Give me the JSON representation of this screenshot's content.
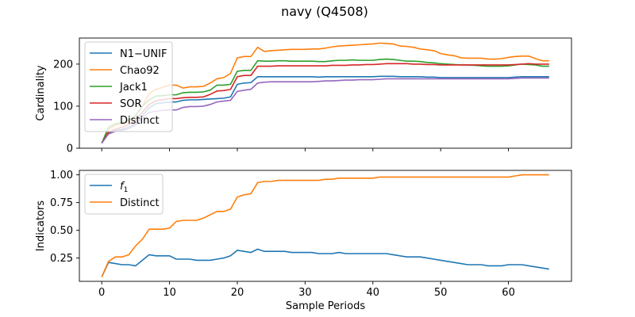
{
  "figure_title": "navy (Q4508)",
  "chart_data": [
    {
      "type": "line",
      "xlabel": "",
      "ylabel": "Cardinality",
      "xlim": [
        -3.3,
        69.3
      ],
      "ylim": [
        0,
        262
      ],
      "xticks": [
        0,
        10,
        20,
        30,
        40,
        50,
        60
      ],
      "xticklabels_visible": false,
      "yticks": [
        0,
        100,
        200
      ],
      "yticklabels": [
        "0",
        "100",
        "200"
      ],
      "legend": "upper-left",
      "grid": false,
      "x": [
        0,
        1,
        2,
        3,
        4,
        5,
        6,
        7,
        8,
        9,
        10,
        11,
        12,
        13,
        14,
        15,
        16,
        17,
        18,
        19,
        20,
        21,
        22,
        23,
        24,
        25,
        26,
        27,
        28,
        29,
        30,
        31,
        32,
        33,
        34,
        35,
        36,
        37,
        38,
        39,
        40,
        41,
        42,
        43,
        44,
        45,
        46,
        47,
        48,
        49,
        50,
        51,
        52,
        53,
        54,
        55,
        56,
        57,
        58,
        59,
        60,
        61,
        62,
        63,
        64,
        65,
        66
      ],
      "series": [
        {
          "name": "N1−UNIF",
          "color": "#1f77b4",
          "values": [
            12,
            37,
            42,
            45,
            50,
            58,
            78,
            96,
            106,
            108,
            110,
            110,
            114,
            115,
            115,
            116,
            117,
            118,
            119,
            122,
            152,
            155,
            156,
            170,
            170,
            170,
            170,
            170,
            170,
            170,
            170,
            170,
            169,
            170,
            170,
            170,
            170,
            170,
            170,
            170,
            170,
            171,
            171,
            171,
            170,
            170,
            170,
            170,
            169,
            169,
            168,
            168,
            168,
            168,
            168,
            168,
            168,
            168,
            168,
            168,
            168,
            169,
            170,
            170,
            170,
            170,
            170
          ]
        },
        {
          "name": "Chao92",
          "color": "#ff7f0e",
          "values": [
            12,
            45,
            55,
            58,
            65,
            78,
            100,
            130,
            140,
            145,
            150,
            150,
            143,
            146,
            146,
            147,
            155,
            165,
            168,
            178,
            215,
            218,
            218,
            240,
            230,
            232,
            233,
            234,
            235,
            235,
            235,
            236,
            236,
            238,
            241,
            243,
            244,
            245,
            246,
            247,
            248,
            250,
            249,
            248,
            243,
            242,
            240,
            236,
            234,
            232,
            225,
            222,
            220,
            215,
            214,
            214,
            214,
            212,
            212,
            213,
            216,
            218,
            219,
            219,
            213,
            208,
            208
          ]
        },
        {
          "name": "Jack1",
          "color": "#2ca02c",
          "values": [
            12,
            50,
            58,
            62,
            67,
            78,
            100,
            115,
            124,
            125,
            127,
            127,
            132,
            133,
            133,
            134,
            138,
            150,
            150,
            152,
            183,
            185,
            185,
            208,
            207,
            207,
            208,
            208,
            207,
            207,
            207,
            207,
            206,
            206,
            208,
            209,
            209,
            210,
            209,
            209,
            209,
            211,
            212,
            211,
            209,
            207,
            207,
            206,
            204,
            203,
            201,
            200,
            199,
            198,
            198,
            197,
            196,
            195,
            195,
            195,
            196,
            198,
            200,
            199,
            198,
            195,
            195
          ]
        },
        {
          "name": "SOR",
          "color": "#d62728",
          "values": [
            12,
            38,
            45,
            50,
            56,
            68,
            86,
            104,
            113,
            115,
            118,
            118,
            120,
            121,
            121,
            122,
            128,
            136,
            137,
            140,
            170,
            173,
            173,
            195,
            195,
            195,
            196,
            196,
            196,
            196,
            196,
            196,
            196,
            196,
            197,
            197,
            197,
            198,
            198,
            199,
            199,
            200,
            201,
            201,
            201,
            201,
            200,
            200,
            199,
            199,
            198,
            198,
            198,
            198,
            198,
            198,
            198,
            198,
            198,
            198,
            198,
            199,
            200,
            201,
            200,
            200,
            200
          ]
        },
        {
          "name": "Distinct",
          "color": "#9467bd",
          "values": [
            12,
            34,
            40,
            42,
            47,
            55,
            73,
            85,
            88,
            90,
            91,
            91,
            97,
            99,
            99,
            100,
            104,
            110,
            112,
            114,
            135,
            138,
            140,
            155,
            157,
            158,
            158,
            158,
            158,
            158,
            158,
            158,
            159,
            160,
            160,
            161,
            162,
            162,
            163,
            163,
            163,
            164,
            165,
            165,
            165,
            165,
            165,
            165,
            165,
            165,
            165,
            165,
            165,
            165,
            165,
            165,
            165,
            165,
            165,
            165,
            165,
            166,
            167,
            167,
            167,
            167,
            167
          ]
        }
      ]
    },
    {
      "type": "line",
      "xlabel": "Sample Periods",
      "ylabel": "Indicators",
      "xlim": [
        -3.3,
        69.3
      ],
      "ylim": [
        0.04,
        1.04
      ],
      "xticks": [
        0,
        10,
        20,
        30,
        40,
        50,
        60
      ],
      "xticklabels": [
        "0",
        "10",
        "20",
        "30",
        "40",
        "50",
        "60"
      ],
      "yticks": [
        0.25,
        0.5,
        0.75,
        1.0
      ],
      "yticklabels": [
        "0.25",
        "0.50",
        "0.75",
        "1.00"
      ],
      "legend": "upper-left",
      "grid": false,
      "x": [
        0,
        1,
        2,
        3,
        4,
        5,
        6,
        7,
        8,
        9,
        10,
        11,
        12,
        13,
        14,
        15,
        16,
        17,
        18,
        19,
        20,
        21,
        22,
        23,
        24,
        25,
        26,
        27,
        28,
        29,
        30,
        31,
        32,
        33,
        34,
        35,
        36,
        37,
        38,
        39,
        40,
        41,
        42,
        43,
        44,
        45,
        46,
        47,
        48,
        49,
        50,
        51,
        52,
        53,
        54,
        55,
        56,
        57,
        58,
        59,
        60,
        61,
        62,
        63,
        64,
        65,
        66
      ],
      "series": [
        {
          "name": "f1",
          "name_base": "f",
          "name_sub": "1",
          "color": "#1f77b4",
          "values": [
            0.08,
            0.21,
            0.2,
            0.19,
            0.19,
            0.18,
            0.23,
            0.28,
            0.27,
            0.27,
            0.27,
            0.24,
            0.24,
            0.24,
            0.23,
            0.23,
            0.23,
            0.24,
            0.25,
            0.27,
            0.32,
            0.31,
            0.3,
            0.33,
            0.31,
            0.31,
            0.31,
            0.31,
            0.3,
            0.3,
            0.3,
            0.3,
            0.29,
            0.29,
            0.29,
            0.3,
            0.29,
            0.29,
            0.29,
            0.29,
            0.29,
            0.29,
            0.29,
            0.28,
            0.27,
            0.26,
            0.26,
            0.26,
            0.25,
            0.24,
            0.23,
            0.22,
            0.21,
            0.2,
            0.19,
            0.19,
            0.19,
            0.18,
            0.18,
            0.18,
            0.19,
            0.19,
            0.19,
            0.18,
            0.17,
            0.16,
            0.15
          ]
        },
        {
          "name": "Distinct",
          "color": "#ff7f0e",
          "values": [
            0.08,
            0.22,
            0.26,
            0.26,
            0.28,
            0.36,
            0.42,
            0.51,
            0.51,
            0.51,
            0.52,
            0.58,
            0.59,
            0.59,
            0.59,
            0.61,
            0.64,
            0.67,
            0.67,
            0.69,
            0.8,
            0.82,
            0.83,
            0.93,
            0.94,
            0.94,
            0.95,
            0.95,
            0.95,
            0.95,
            0.95,
            0.95,
            0.95,
            0.96,
            0.96,
            0.97,
            0.97,
            0.97,
            0.97,
            0.97,
            0.97,
            0.98,
            0.98,
            0.98,
            0.98,
            0.98,
            0.98,
            0.98,
            0.98,
            0.98,
            0.98,
            0.98,
            0.98,
            0.98,
            0.98,
            0.98,
            0.98,
            0.98,
            0.98,
            0.98,
            0.98,
            0.99,
            1.0,
            1.0,
            1.0,
            1.0,
            1.0
          ]
        }
      ]
    }
  ]
}
